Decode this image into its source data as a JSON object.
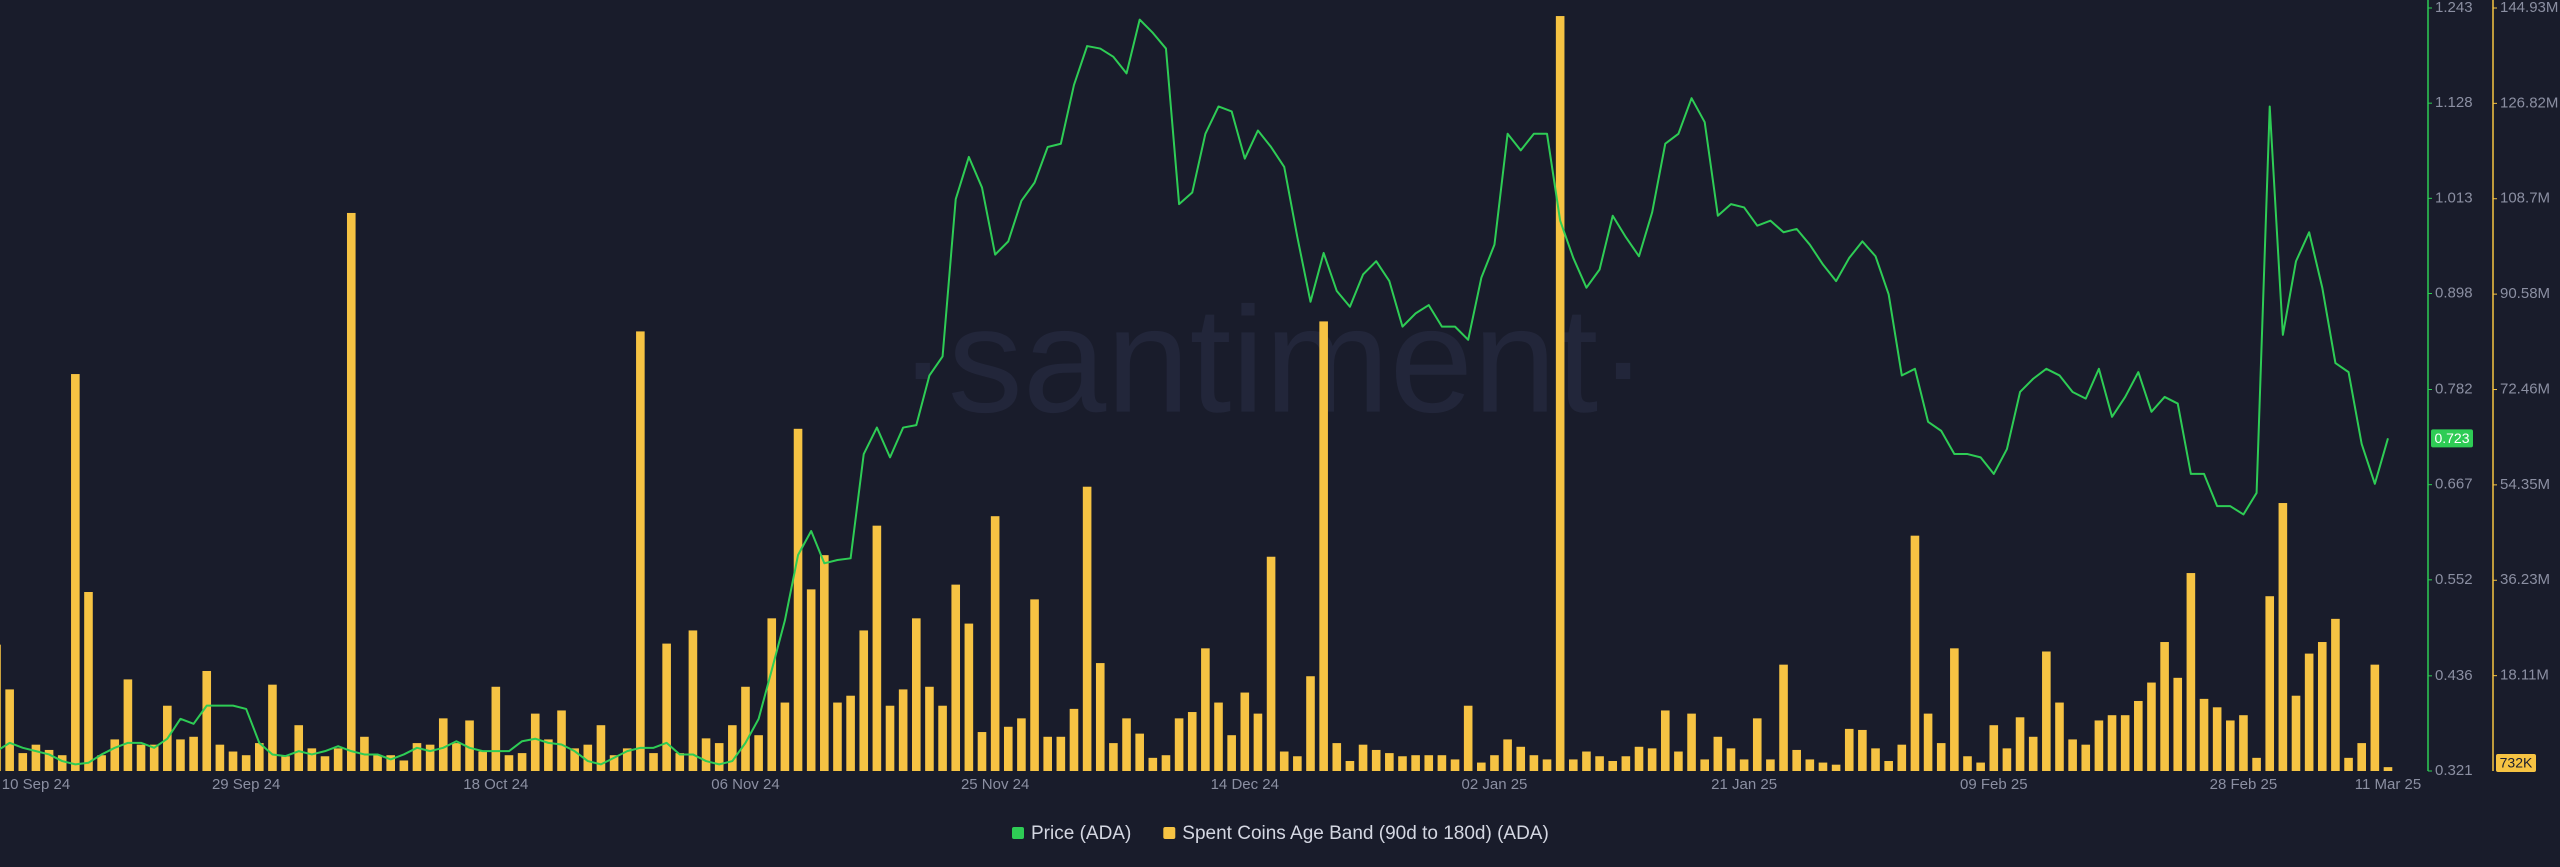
{
  "chart_data": {
    "type": "combo",
    "watermark": "·santiment·",
    "categories": [
      "10 Sep 24",
      null,
      null,
      null,
      null,
      null,
      null,
      null,
      null,
      null,
      null,
      null,
      null,
      null,
      null,
      null,
      null,
      null,
      null,
      "29 Sep 24",
      null,
      null,
      null,
      null,
      null,
      null,
      null,
      null,
      null,
      null,
      null,
      null,
      null,
      null,
      null,
      null,
      null,
      null,
      "18 Oct 24",
      null,
      null,
      null,
      null,
      null,
      null,
      null,
      null,
      null,
      null,
      null,
      null,
      null,
      null,
      null,
      null,
      null,
      null,
      "06 Nov 24",
      null,
      null,
      null,
      null,
      null,
      null,
      null,
      null,
      null,
      null,
      null,
      null,
      null,
      null,
      null,
      null,
      null,
      null,
      "25 Nov 24",
      null,
      null,
      null,
      null,
      null,
      null,
      null,
      null,
      null,
      null,
      null,
      null,
      null,
      null,
      null,
      null,
      null,
      null,
      "14 Dec 24",
      null,
      null,
      null,
      null,
      null,
      null,
      null,
      null,
      null,
      null,
      null,
      null,
      null,
      null,
      null,
      null,
      null,
      null,
      "02 Jan 25",
      null,
      null,
      null,
      null,
      null,
      null,
      null,
      null,
      null,
      null,
      null,
      null,
      null,
      null,
      null,
      null,
      null,
      null,
      "21 Jan 25",
      null,
      null,
      null,
      null,
      null,
      null,
      null,
      null,
      null,
      null,
      null,
      null,
      null,
      null,
      null,
      null,
      null,
      null,
      "09 Feb 25",
      null,
      null,
      null,
      null,
      null,
      null,
      null,
      null,
      null,
      null,
      null,
      null,
      null,
      null,
      null,
      null,
      null,
      null,
      "28 Feb 25",
      null,
      null,
      null,
      null,
      null,
      null,
      null,
      null,
      null,
      null,
      "11 Mar 25"
    ],
    "ylim": [
      0.321,
      1.243
    ],
    "yticks": [
      0.321,
      0.436,
      0.552,
      0.667,
      0.782,
      0.898,
      1.013,
      1.128,
      1.243
    ],
    "y2lim": [
      0,
      144930000
    ],
    "y2ticks": [
      {
        "value": 18110000,
        "label": "18.11M"
      },
      {
        "value": 36230000,
        "label": "36.23M"
      },
      {
        "value": 54350000,
        "label": "54.35M"
      },
      {
        "value": 72460000,
        "label": "72.46M"
      },
      {
        "value": 90580000,
        "label": "90.58M"
      },
      {
        "value": 108700000,
        "label": "108.7M"
      },
      {
        "value": 126820000,
        "label": "126.82M"
      },
      {
        "value": 144930000,
        "label": "144.93M"
      }
    ],
    "grid": false,
    "legend": "bottom",
    "series": [
      {
        "name": "Price (ADA)",
        "type": "line",
        "axis": "y",
        "color": "#2ecc55",
        "current_label": "0.723",
        "values": [
          0.345,
          0.355,
          0.349,
          0.345,
          0.341,
          0.333,
          0.329,
          0.331,
          0.341,
          0.349,
          0.355,
          0.355,
          0.349,
          0.36,
          0.384,
          0.378,
          0.4,
          0.4,
          0.4,
          0.396,
          0.355,
          0.341,
          0.339,
          0.345,
          0.341,
          0.345,
          0.351,
          0.345,
          0.341,
          0.341,
          0.335,
          0.341,
          0.349,
          0.345,
          0.349,
          0.357,
          0.349,
          0.345,
          0.345,
          0.345,
          0.357,
          0.36,
          0.355,
          0.353,
          0.345,
          0.333,
          0.329,
          0.337,
          0.345,
          0.349,
          0.349,
          0.355,
          0.341,
          0.341,
          0.333,
          0.329,
          0.333,
          0.355,
          0.384,
          0.443,
          0.503,
          0.582,
          0.611,
          0.572,
          0.576,
          0.578,
          0.704,
          0.736,
          0.7,
          0.736,
          0.739,
          0.799,
          0.822,
          1.012,
          1.063,
          1.026,
          0.945,
          0.961,
          1.01,
          1.032,
          1.075,
          1.079,
          1.15,
          1.197,
          1.194,
          1.184,
          1.164,
          1.229,
          1.213,
          1.194,
          1.006,
          1.02,
          1.091,
          1.124,
          1.118,
          1.061,
          1.095,
          1.075,
          1.051,
          0.966,
          0.888,
          0.947,
          0.901,
          0.882,
          0.921,
          0.937,
          0.913,
          0.858,
          0.874,
          0.884,
          0.858,
          0.858,
          0.842,
          0.917,
          0.957,
          1.091,
          1.071,
          1.091,
          1.091,
          0.986,
          0.941,
          0.905,
          0.927,
          0.992,
          0.966,
          0.943,
          0.996,
          1.079,
          1.091,
          1.134,
          1.105,
          0.992,
          1.006,
          1.002,
          0.98,
          0.986,
          0.972,
          0.976,
          0.957,
          0.933,
          0.913,
          0.941,
          0.961,
          0.943,
          0.897,
          0.799,
          0.807,
          0.743,
          0.732,
          0.704,
          0.704,
          0.7,
          0.68,
          0.71,
          0.779,
          0.795,
          0.807,
          0.799,
          0.779,
          0.771,
          0.807,
          0.749,
          0.773,
          0.803,
          0.755,
          0.773,
          0.765,
          0.68,
          0.68,
          0.641,
          0.641,
          0.631,
          0.657,
          1.124,
          0.848,
          0.937,
          0.972,
          0.905,
          0.814,
          0.803,
          0.716,
          0.668,
          0.723
        ]
      },
      {
        "name": "Spent Coins Age Band (90d to 180d) (ADA)",
        "type": "bar",
        "axis": "y2",
        "color": "#f6c343",
        "current_label": "732K",
        "values": [
          24000000.0,
          15500000.0,
          3400000.0,
          5000000.0,
          4000000.0,
          3000000.0,
          75400000.0,
          34000000.0,
          3000000.0,
          6000000.0,
          17400000.0,
          5000000.0,
          5000000.0,
          12400000.0,
          6000000.0,
          6500000.0,
          19000000.0,
          5000000.0,
          3700000.0,
          3000000.0,
          5300000.0,
          16400000.0,
          2800000.0,
          8700000.0,
          4300000.0,
          2800000.0,
          4300000.0,
          106000000.0,
          6500000.0,
          3000000.0,
          3000000.0,
          2000000.0,
          5300000.0,
          5000000.0,
          10000000.0,
          5300000.0,
          9600000.0,
          3700000.0,
          16000000.0,
          3000000.0,
          3400000.0,
          10900000.0,
          6000000.0,
          11500000.0,
          4300000.0,
          5000000.0,
          8700000.0,
          3000000.0,
          4300000.0,
          83500000.0,
          3400000.0,
          24200000.0,
          3400000.0,
          26700000.0,
          6200000.0,
          5300000.0,
          8700000.0,
          16000000.0,
          6800000.0,
          29000000.0,
          13000000.0,
          65000000.0,
          34500000.0,
          41000000.0,
          13000000.0,
          14300000.0,
          26700000.0,
          46600000.0,
          12400000.0,
          15500000.0,
          29000000.0,
          16000000.0,
          12400000.0,
          35400000.0,
          28000000.0,
          7400000.0,
          48400000.0,
          8400000.0,
          10000000.0,
          32600000.0,
          6500000.0,
          6500000.0,
          11800000.0,
          54000000.0,
          20500000.0,
          5300000.0,
          10000000.0,
          7100000.0,
          2500000.0,
          3000000.0,
          10000000.0,
          11200000.0,
          23300000.0,
          13000000.0,
          6800000.0,
          14900000.0,
          10900000.0,
          40700000.0,
          3700000.0,
          2800000.0,
          18000000.0,
          85400000.0,
          5300000.0,
          1900000.0,
          5000000.0,
          4000000.0,
          3400000.0,
          2800000.0,
          3000000.0,
          3000000.0,
          3000000.0,
          2200000.0,
          12400000.0,
          1600000.0,
          3000000.0,
          6000000.0,
          4600000.0,
          3000000.0,
          2200000.0,
          143400000.0,
          2200000.0,
          3700000.0,
          2800000.0,
          1900000.0,
          2800000.0,
          4600000.0,
          4300000.0,
          11500000.0,
          3700000.0,
          10900000.0,
          2200000.0,
          6500000.0,
          4300000.0,
          2200000.0,
          10000000.0,
          2200000.0,
          20200000.0,
          4000000.0,
          2200000.0,
          1600000.0,
          1200000.0,
          8000000.0,
          7800000.0,
          4300000.0,
          1900000.0,
          5000000.0,
          44700000.0,
          10900000.0,
          5300000.0,
          23300000.0,
          2800000.0,
          1600000.0,
          8700000.0,
          4300000.0,
          10200000.0,
          6500000.0,
          22700000.0,
          13000000.0,
          6000000.0,
          5000000.0,
          9600000.0,
          10600000.0,
          10600000.0,
          13300000.0,
          16800000.0,
          24500000.0,
          17700000.0,
          37600000.0,
          13700000.0,
          12100000.0,
          9600000.0,
          10600000.0,
          2500000.0,
          33200000.0,
          50900000.0,
          14300000.0,
          22300000.0,
          24500000.0,
          28900000.0,
          2500000.0,
          5300000.0,
          20200000.0,
          732000
        ]
      }
    ]
  }
}
